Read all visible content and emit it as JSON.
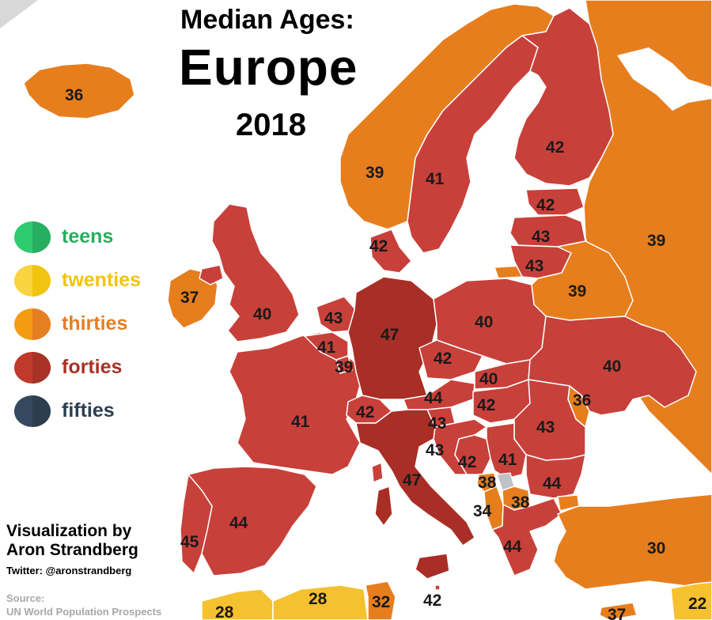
{
  "title": {
    "line1": "Median Ages:",
    "line2": "Europe",
    "line3": "2018"
  },
  "legend": [
    {
      "label": "teens",
      "color": "#2ecc71",
      "shade": "#27ae60",
      "text_color": "#27ae60"
    },
    {
      "label": "twenties",
      "color": "#f9d342",
      "shade": "#f1c40f",
      "text_color": "#f1c40f"
    },
    {
      "label": "thirties",
      "color": "#f39c12",
      "shade": "#e67e22",
      "text_color": "#e67e22"
    },
    {
      "label": "forties",
      "color": "#c0392b",
      "shade": "#a93226",
      "text_color": "#a93226"
    },
    {
      "label": "fifties",
      "color": "#34495e",
      "shade": "#2c3e50",
      "text_color": "#2c3e50"
    }
  ],
  "credit": {
    "line1": "Visualization by",
    "line2": "Aron Strandberg",
    "twitter": "Twitter: @aronstrandberg"
  },
  "source": {
    "label": "Source:",
    "name": "UN World Population Prospects"
  },
  "colors": {
    "thirties": "#e67e1e",
    "forties": "#c8403a",
    "forties_dark": "#a82e26",
    "twenties": "#f5c12e",
    "unknown": "#c0c0c8",
    "background": "#ffffff"
  },
  "countries": [
    {
      "id": "iceland",
      "median_age": "36",
      "bracket": "thirties"
    },
    {
      "id": "norway",
      "median_age": "39",
      "bracket": "thirties"
    },
    {
      "id": "sweden",
      "median_age": "41",
      "bracket": "forties"
    },
    {
      "id": "finland",
      "median_age": "42",
      "bracket": "forties"
    },
    {
      "id": "russia",
      "median_age": "39",
      "bracket": "thirties"
    },
    {
      "id": "estonia",
      "median_age": "42",
      "bracket": "forties"
    },
    {
      "id": "latvia",
      "median_age": "43",
      "bracket": "forties"
    },
    {
      "id": "lithuania",
      "median_age": "43",
      "bracket": "forties"
    },
    {
      "id": "denmark",
      "median_age": "42",
      "bracket": "forties"
    },
    {
      "id": "belarus",
      "median_age": "39",
      "bracket": "thirties"
    },
    {
      "id": "ireland",
      "median_age": "37",
      "bracket": "thirties"
    },
    {
      "id": "united-kingdom",
      "median_age": "40",
      "bracket": "forties"
    },
    {
      "id": "netherlands",
      "median_age": "43",
      "bracket": "forties"
    },
    {
      "id": "belgium",
      "median_age": "41",
      "bracket": "forties"
    },
    {
      "id": "luxembourg",
      "median_age": "39",
      "bracket": "thirties"
    },
    {
      "id": "germany",
      "median_age": "47",
      "bracket": "forties"
    },
    {
      "id": "poland",
      "median_age": "40",
      "bracket": "forties"
    },
    {
      "id": "czechia",
      "median_age": "42",
      "bracket": "forties"
    },
    {
      "id": "slovakia",
      "median_age": "40",
      "bracket": "forties"
    },
    {
      "id": "ukraine",
      "median_age": "40",
      "bracket": "forties"
    },
    {
      "id": "moldova",
      "median_age": "36",
      "bracket": "thirties"
    },
    {
      "id": "austria",
      "median_age": "44",
      "bracket": "forties"
    },
    {
      "id": "hungary",
      "median_age": "42",
      "bracket": "forties"
    },
    {
      "id": "switzerland",
      "median_age": "42",
      "bracket": "forties"
    },
    {
      "id": "france",
      "median_age": "41",
      "bracket": "forties"
    },
    {
      "id": "slovenia",
      "median_age": "43",
      "bracket": "forties"
    },
    {
      "id": "croatia",
      "median_age": "43",
      "bracket": "forties"
    },
    {
      "id": "romania",
      "median_age": "43",
      "bracket": "forties"
    },
    {
      "id": "bosnia",
      "median_age": "42",
      "bracket": "forties"
    },
    {
      "id": "serbia",
      "median_age": "41",
      "bracket": "forties"
    },
    {
      "id": "montenegro",
      "median_age": "38",
      "bracket": "thirties"
    },
    {
      "id": "north-macedonia",
      "median_age": "38",
      "bracket": "thirties"
    },
    {
      "id": "albania",
      "median_age": "34",
      "bracket": "thirties"
    },
    {
      "id": "bulgaria",
      "median_age": "44",
      "bracket": "forties"
    },
    {
      "id": "italy",
      "median_age": "47",
      "bracket": "forties"
    },
    {
      "id": "spain",
      "median_age": "44",
      "bracket": "forties"
    },
    {
      "id": "portugal",
      "median_age": "45",
      "bracket": "forties"
    },
    {
      "id": "greece",
      "median_age": "44",
      "bracket": "forties"
    },
    {
      "id": "turkey",
      "median_age": "30",
      "bracket": "thirties"
    },
    {
      "id": "morocco",
      "median_age": "28",
      "bracket": "twenties"
    },
    {
      "id": "algeria",
      "median_age": "28",
      "bracket": "twenties"
    },
    {
      "id": "tunisia",
      "median_age": "32",
      "bracket": "thirties"
    },
    {
      "id": "malta",
      "median_age": "42",
      "bracket": "forties"
    },
    {
      "id": "cyprus",
      "median_age": "37",
      "bracket": "thirties"
    },
    {
      "id": "syria",
      "median_age": "22",
      "bracket": "twenties"
    }
  ]
}
